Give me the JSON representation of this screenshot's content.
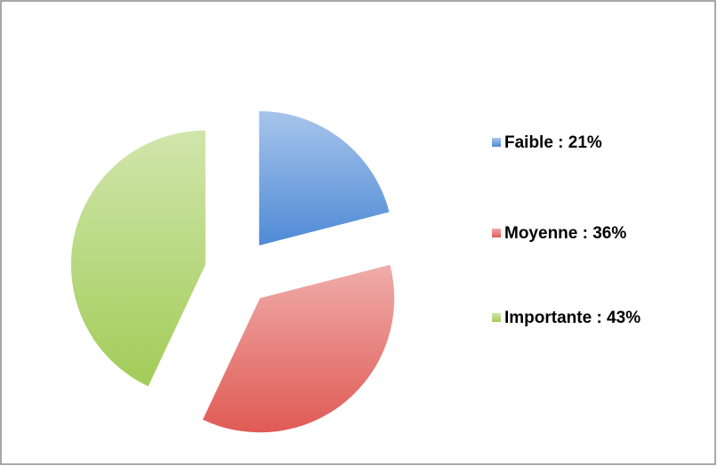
{
  "chart_data": {
    "type": "pie",
    "categories": [
      "Faible : 21%",
      "Moyenne : 36%",
      "Importante : 43%"
    ],
    "values": [
      21,
      36,
      43
    ],
    "colors": [
      "#4f8ad6",
      "#e05a55",
      "#a2cc58"
    ],
    "legend": "right"
  }
}
